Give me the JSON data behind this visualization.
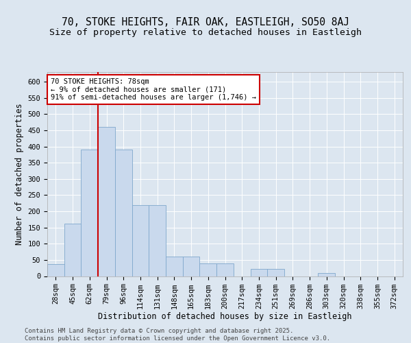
{
  "title_line1": "70, STOKE HEIGHTS, FAIR OAK, EASTLEIGH, SO50 8AJ",
  "title_line2": "Size of property relative to detached houses in Eastleigh",
  "xlabel": "Distribution of detached houses by size in Eastleigh",
  "ylabel": "Number of detached properties",
  "categories": [
    "28sqm",
    "45sqm",
    "62sqm",
    "79sqm",
    "96sqm",
    "114sqm",
    "131sqm",
    "148sqm",
    "165sqm",
    "183sqm",
    "200sqm",
    "217sqm",
    "234sqm",
    "251sqm",
    "269sqm",
    "286sqm",
    "303sqm",
    "320sqm",
    "338sqm",
    "355sqm",
    "372sqm"
  ],
  "values": [
    38,
    163,
    390,
    460,
    390,
    220,
    220,
    60,
    60,
    40,
    40,
    0,
    22,
    22,
    0,
    0,
    10,
    0,
    0,
    0,
    0
  ],
  "bar_color": "#c9d9ed",
  "bar_edge_color": "#7fa8cc",
  "vline_color": "#cc0000",
  "annotation_text": "70 STOKE HEIGHTS: 78sqm\n← 9% of detached houses are smaller (171)\n91% of semi-detached houses are larger (1,746) →",
  "annotation_box_facecolor": "#ffffff",
  "annotation_box_edgecolor": "#cc0000",
  "ylim": [
    0,
    630
  ],
  "yticks": [
    0,
    50,
    100,
    150,
    200,
    250,
    300,
    350,
    400,
    450,
    500,
    550,
    600
  ],
  "background_color": "#dce6f0",
  "grid_color": "#ffffff",
  "footer_text": "Contains HM Land Registry data © Crown copyright and database right 2025.\nContains public sector information licensed under the Open Government Licence v3.0.",
  "title_fontsize": 10.5,
  "subtitle_fontsize": 9.5,
  "axis_label_fontsize": 8.5,
  "tick_fontsize": 7.5,
  "annotation_fontsize": 7.5,
  "footer_fontsize": 6.5
}
